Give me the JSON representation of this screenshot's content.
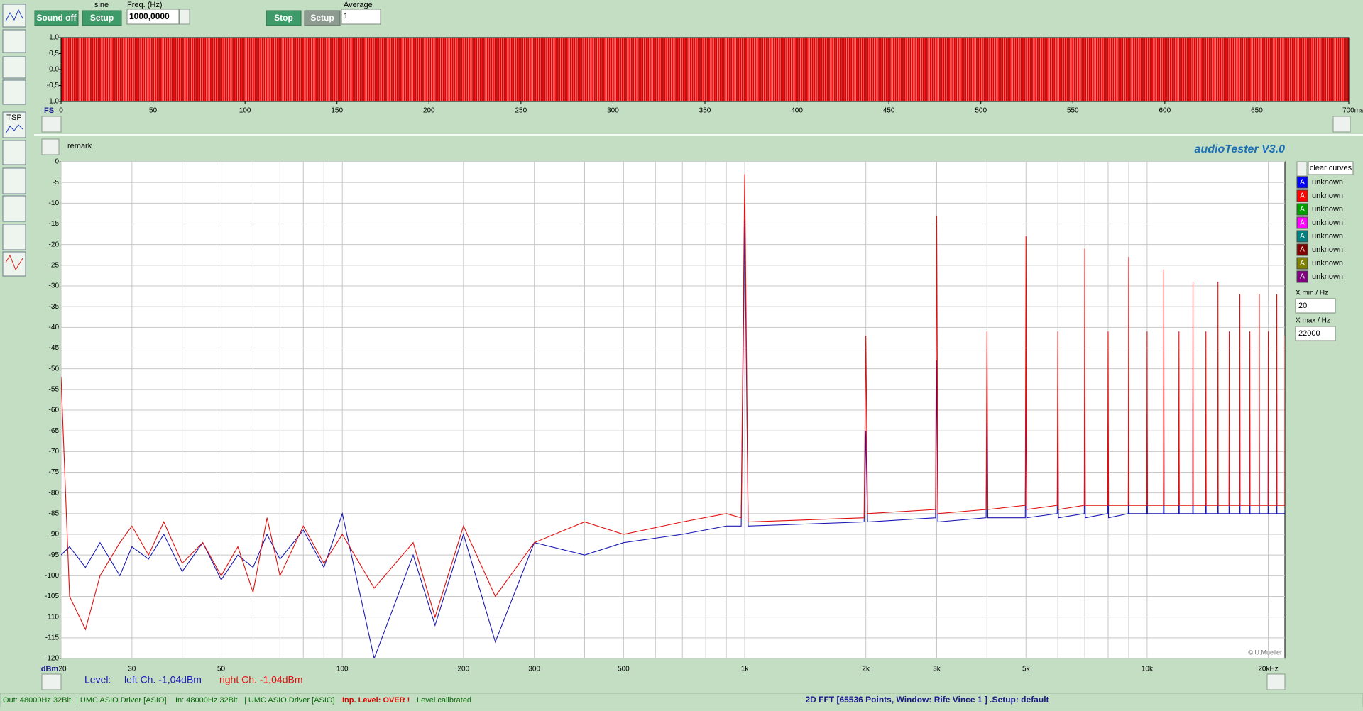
{
  "sidebar": {
    "tsp_label": "TSP"
  },
  "toolbar": {
    "sound_button": "Sound off",
    "generator_label": "sine",
    "setup_button": "Setup",
    "freq_label": "Freq. (Hz)",
    "freq_value": "1000,0000",
    "stop_button": "Stop",
    "setup_button_2": "Setup",
    "average_label": "Average",
    "average_value": "1"
  },
  "time_chart": {
    "type": "area",
    "y_unit": "FS",
    "color": "#e00000",
    "envelope": [
      -1,
      1
    ],
    "xlim": [
      0,
      700
    ],
    "xticks": [
      0,
      50,
      100,
      150,
      200,
      250,
      300,
      350,
      400,
      450,
      500,
      550,
      600,
      650,
      {
        "value": 700,
        "label": "700ms"
      }
    ],
    "ylim": [
      -1,
      1
    ],
    "yticks": [
      {
        "value": 1,
        "label": "1,0"
      },
      {
        "value": 0.5,
        "label": "0,5"
      },
      {
        "value": 0,
        "label": "0,0"
      },
      {
        "value": -0.5,
        "label": "-0,5"
      },
      {
        "value": -1,
        "label": "-1,0"
      }
    ]
  },
  "remark": "remark",
  "app_title": "audioTester  V3.0",
  "fft_chart": {
    "type": "line",
    "y_unit": "dBm",
    "xscale": "log",
    "grid": true,
    "credit": "© U.Mueller",
    "xlim": [
      20,
      22000
    ],
    "ylim": [
      -120,
      0
    ],
    "xticks": [
      20,
      30,
      50,
      100,
      200,
      300,
      500,
      {
        "value": 1000,
        "label": "1k"
      },
      {
        "value": 2000,
        "label": "2k"
      },
      {
        "value": 3000,
        "label": "3k"
      },
      {
        "value": 5000,
        "label": "5k"
      },
      {
        "value": 10000,
        "label": "10k"
      },
      {
        "value": 20000,
        "label": "20kHz"
      }
    ],
    "xgrid_minor": [
      40,
      60,
      70,
      80,
      90,
      400,
      600,
      700,
      800,
      900,
      4000,
      6000,
      7000,
      8000,
      9000
    ],
    "yticks": [
      0,
      -5,
      -10,
      -15,
      -20,
      -25,
      -30,
      -35,
      -40,
      -45,
      -50,
      -55,
      -60,
      -65,
      -70,
      -75,
      -80,
      -85,
      -90,
      -95,
      -100,
      -105,
      -110,
      -115,
      -120
    ],
    "x": [
      20,
      21,
      23,
      25,
      28,
      30,
      33,
      36,
      40,
      45,
      50,
      55,
      60,
      65,
      70,
      80,
      90,
      100,
      120,
      150,
      170,
      200,
      240,
      300,
      400,
      500,
      700,
      900,
      980,
      1000,
      1020,
      1980,
      2000,
      2020,
      2980,
      3000,
      3020,
      3980,
      4000,
      4020,
      4980,
      5000,
      5020,
      5980,
      6000,
      6020,
      6980,
      7000,
      7020,
      7980,
      8000,
      8020,
      8980,
      9000,
      9020,
      9980,
      10000,
      10020,
      10980,
      11000,
      11020,
      11980,
      12000,
      12020,
      12980,
      13000,
      13020,
      13980,
      14000,
      14020,
      14980,
      15000,
      15020,
      15980,
      16000,
      16020,
      16980,
      17000,
      17020,
      17980,
      18000,
      18020,
      18980,
      19000,
      19020,
      19980,
      20000,
      20020,
      20980,
      21000,
      21020,
      21980,
      22000
    ],
    "series": [
      {
        "color": "#1a1ab4",
        "values": [
          -95,
          -93,
          -98,
          -92,
          -100,
          -93,
          -96,
          -90,
          -99,
          -92,
          -101,
          -95,
          -98,
          -90,
          -96,
          -89,
          -98,
          -85,
          -120,
          -95,
          -112,
          -90,
          -116,
          -92,
          -95,
          -92,
          -90,
          -88,
          -88,
          -14,
          -88,
          -87,
          -65,
          -87,
          -86,
          -48,
          -87,
          -86,
          -63,
          -86,
          -86,
          -51,
          -86,
          -85,
          -62,
          -86,
          -85,
          -52,
          -86,
          -85,
          -63,
          -86,
          -85,
          -53,
          -85,
          -85,
          -61,
          -85,
          -85,
          -54,
          -85,
          -85,
          -62,
          -85,
          -85,
          -55,
          -85,
          -85,
          -61,
          -85,
          -85,
          -56,
          -85,
          -85,
          -61,
          -85,
          -85,
          -57,
          -85,
          -85,
          -61,
          -85,
          -85,
          -56,
          -85,
          -85,
          -60,
          -85,
          -85,
          -56,
          -85,
          -85,
          -84
        ]
      },
      {
        "color": "#e01010",
        "values": [
          -52,
          -105,
          -113,
          -100,
          -92,
          -88,
          -95,
          -87,
          -97,
          -92,
          -100,
          -93,
          -104,
          -86,
          -100,
          -88,
          -97,
          -90,
          -103,
          -92,
          -110,
          -88,
          -105,
          -92,
          -87,
          -90,
          -87,
          -85,
          -86,
          -3,
          -87,
          -86,
          -42,
          -85,
          -84,
          -13,
          -85,
          -84,
          -41,
          -84,
          -83,
          -18,
          -84,
          -83,
          -41,
          -84,
          -83,
          -21,
          -83,
          -83,
          -41,
          -83,
          -83,
          -23,
          -83,
          -83,
          -41,
          -83,
          -83,
          -26,
          -83,
          -83,
          -41,
          -83,
          -83,
          -29,
          -83,
          -83,
          -41,
          -83,
          -83,
          -29,
          -83,
          -83,
          -41,
          -83,
          -83,
          -32,
          -83,
          -83,
          -41,
          -83,
          -83,
          -32,
          -83,
          -83,
          -41,
          -83,
          -83,
          -32,
          -83,
          -83,
          -42
        ]
      }
    ]
  },
  "curves": {
    "clear_button": "clear curves",
    "items": [
      {
        "label": "A",
        "name": "unknown",
        "color": "#0000ff"
      },
      {
        "label": "A",
        "name": "unknown",
        "color": "#ff0000"
      },
      {
        "label": "A",
        "name": "unknown",
        "color": "#00a000"
      },
      {
        "label": "A",
        "name": "unknown",
        "color": "#ff00ff"
      },
      {
        "label": "A",
        "name": "unknown",
        "color": "#008080"
      },
      {
        "label": "A",
        "name": "unknown",
        "color": "#800000"
      },
      {
        "label": "A",
        "name": "unknown",
        "color": "#808000"
      },
      {
        "label": "A",
        "name": "unknown",
        "color": "#800080"
      }
    ]
  },
  "x_range": {
    "min_label": "X min / Hz",
    "max_label": "X max / Hz"
  },
  "level": {
    "label": "Level:",
    "left": "left Ch. -1,04dBm",
    "right": "right Ch. -1,04dBm"
  },
  "status": {
    "out": "Out: 48000Hz 32Bit",
    "out_driver": "| UMC ASIO Driver [ASIO]",
    "in": "In: 48000Hz 32Bit",
    "in_driver": "| UMC ASIO Driver [ASIO]",
    "input_level": "Inp. Level: OVER !",
    "calibration": "Level calibrated",
    "fft_info": "2D FFT [65536 Points, Window: Rife Vince 1 ]  .Setup:  default"
  }
}
